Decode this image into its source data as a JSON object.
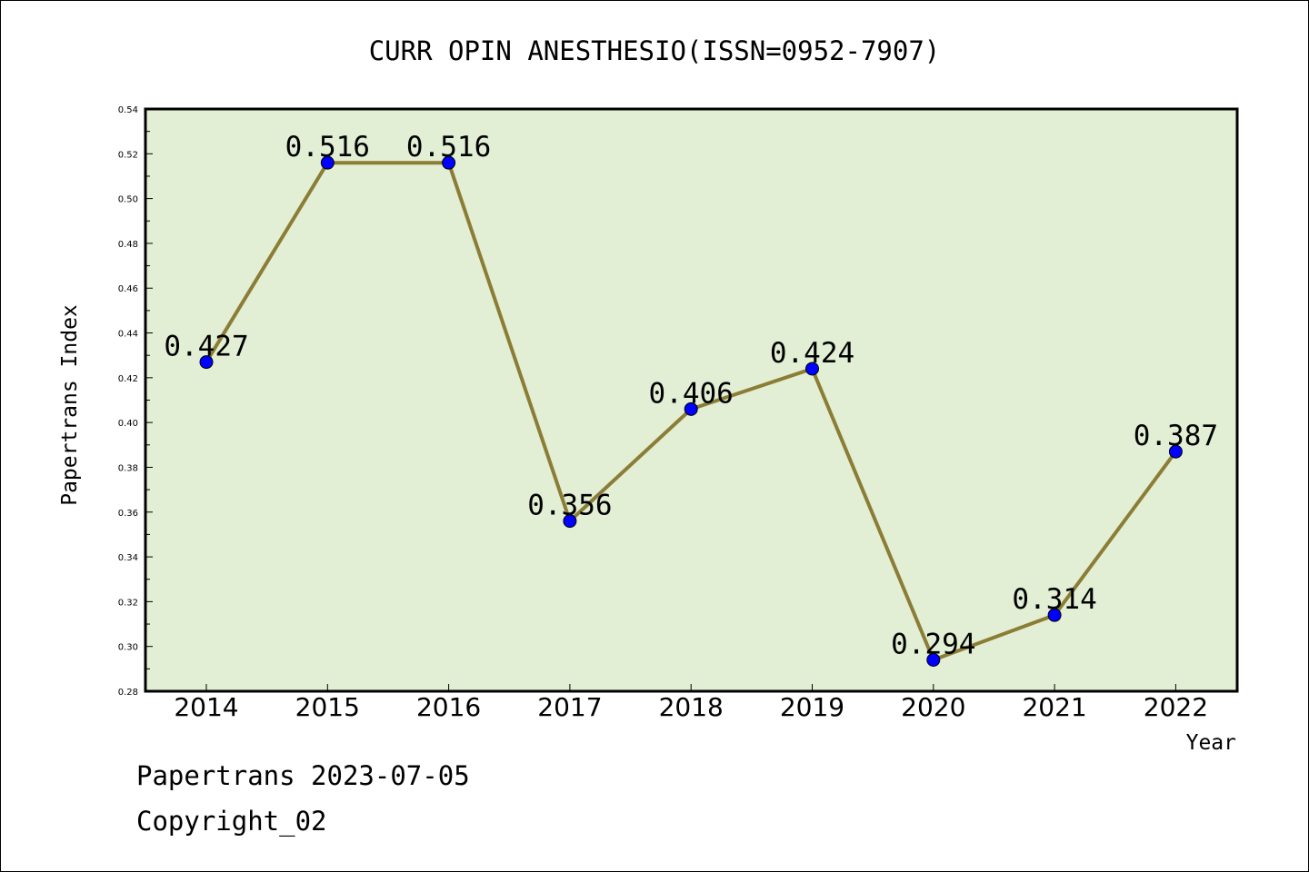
{
  "chart_data": {
    "type": "line",
    "title": "CURR OPIN ANESTHESIO(ISSN=0952-7907)",
    "xlabel": "Year",
    "ylabel": "Papertrans Index",
    "categories": [
      "2014",
      "2015",
      "2016",
      "2017",
      "2018",
      "2019",
      "2020",
      "2021",
      "2022"
    ],
    "values": [
      0.427,
      0.516,
      0.516,
      0.356,
      0.406,
      0.424,
      0.294,
      0.314,
      0.387
    ],
    "value_labels": [
      "0.427",
      "0.516",
      "0.516",
      "0.356",
      "0.406",
      "0.424",
      "0.294",
      "0.314",
      "0.387"
    ],
    "ylim": [
      0.28,
      0.54
    ],
    "yticks": [
      "0.28",
      "0.30",
      "0.32",
      "0.34",
      "0.36",
      "0.38",
      "0.40",
      "0.42",
      "0.44",
      "0.46",
      "0.48",
      "0.50",
      "0.52",
      "0.54"
    ],
    "grid": false,
    "colors": {
      "plot_background": "#e2efd5",
      "line": "#8b7d35",
      "marker": "#0000ff"
    }
  },
  "footer": {
    "line1": "Papertrans 2023-07-05",
    "line2": "Copyright_02"
  }
}
